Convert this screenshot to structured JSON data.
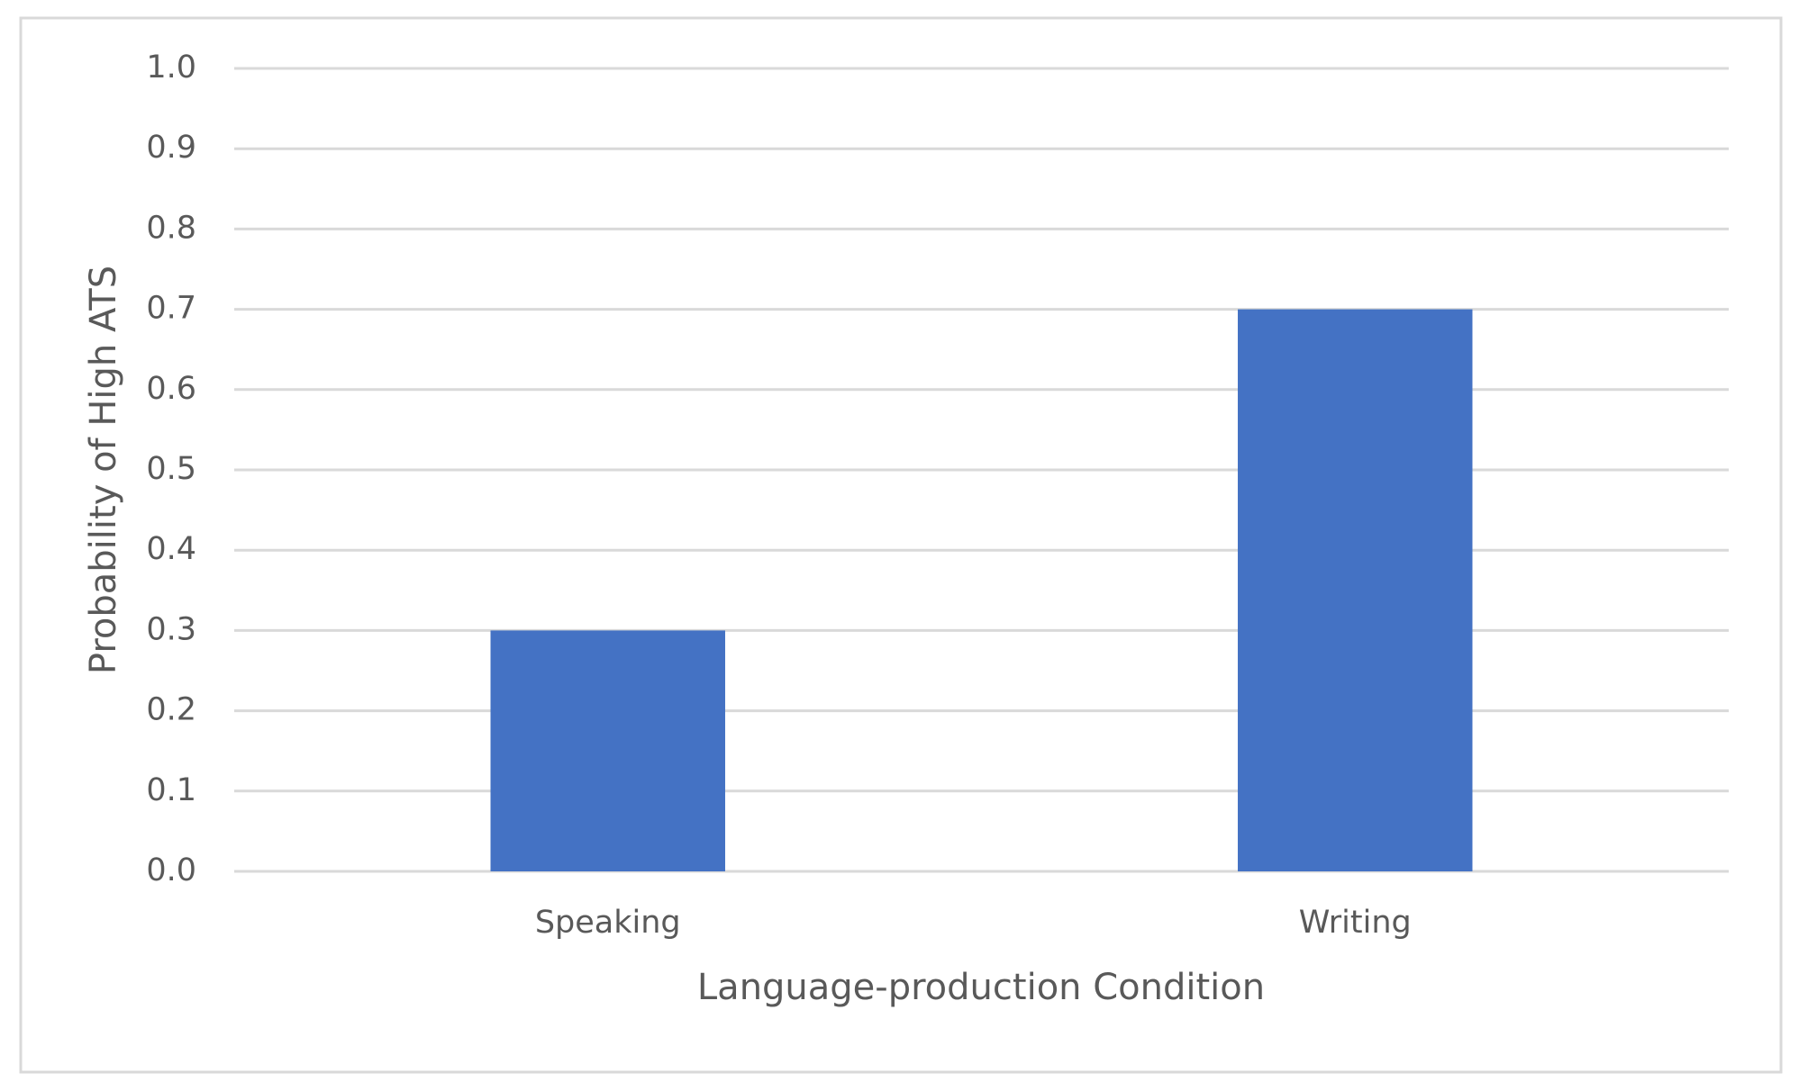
{
  "chart_data": {
    "type": "bar",
    "categories": [
      "Speaking",
      "Writing"
    ],
    "values": [
      0.3,
      0.7
    ],
    "color": "#4472c4",
    "xlabel": "Language-production Condition",
    "ylabel": "Probability of High ATS",
    "ylim": [
      0,
      1
    ],
    "yticks": [
      {
        "value": 0,
        "label": "0.0"
      },
      0.1,
      0.2,
      0.3,
      0.4,
      0.5,
      0.6,
      0.7,
      0.8,
      0.9,
      {
        "value": 1,
        "label": "1.0"
      }
    ],
    "grid": true
  }
}
